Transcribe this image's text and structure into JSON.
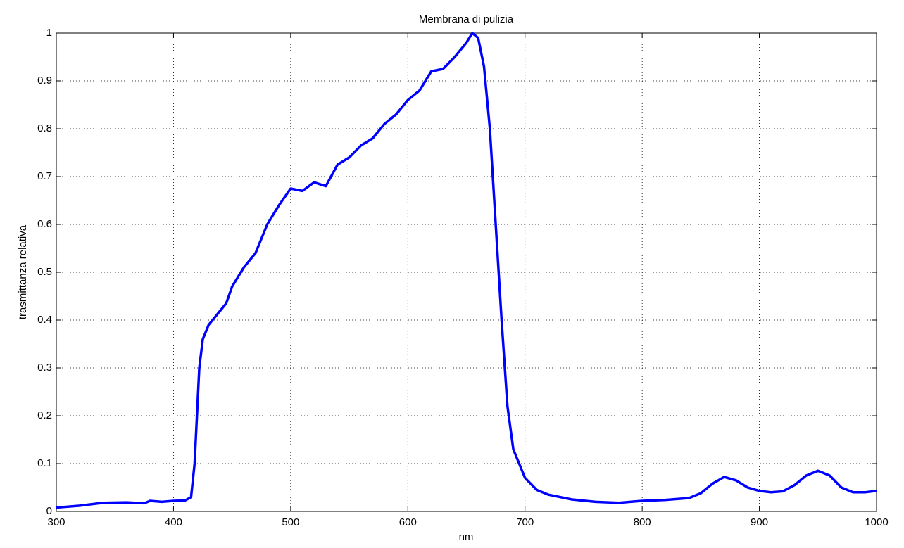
{
  "chart_data": {
    "type": "line",
    "title": "Membrana di pulizia",
    "x_label": "nm",
    "y_label": "trasmittanza relativa",
    "x": [
      300,
      320,
      340,
      360,
      375,
      380,
      390,
      400,
      410,
      415,
      418,
      420,
      422,
      425,
      430,
      440,
      445,
      450,
      460,
      470,
      475,
      480,
      490,
      500,
      510,
      520,
      530,
      540,
      550,
      560,
      570,
      580,
      590,
      600,
      610,
      620,
      630,
      640,
      650,
      655,
      660,
      665,
      670,
      675,
      680,
      685,
      690,
      700,
      710,
      720,
      740,
      760,
      780,
      800,
      820,
      840,
      850,
      860,
      870,
      880,
      890,
      900,
      910,
      920,
      930,
      940,
      950,
      960,
      970,
      980,
      990,
      1000
    ],
    "series": [
      {
        "color": "#0000ff",
        "values": [
          0.008,
          0.012,
          0.018,
          0.019,
          0.017,
          0.022,
          0.02,
          0.022,
          0.023,
          0.03,
          0.1,
          0.2,
          0.3,
          0.36,
          0.39,
          0.42,
          0.435,
          0.47,
          0.51,
          0.54,
          0.57,
          0.6,
          0.64,
          0.675,
          0.67,
          0.688,
          0.68,
          0.725,
          0.74,
          0.765,
          0.78,
          0.81,
          0.83,
          0.86,
          0.88,
          0.92,
          0.925,
          0.95,
          0.98,
          1.0,
          0.99,
          0.93,
          0.8,
          0.6,
          0.4,
          0.22,
          0.13,
          0.07,
          0.045,
          0.035,
          0.025,
          0.02,
          0.018,
          0.022,
          0.024,
          0.028,
          0.038,
          0.058,
          0.072,
          0.065,
          0.05,
          0.043,
          0.04,
          0.042,
          0.055,
          0.075,
          0.085,
          0.075,
          0.05,
          0.04,
          0.04,
          0.043
        ]
      }
    ],
    "xlim": [
      300,
      1000
    ],
    "xticks": [
      300,
      400,
      500,
      600,
      700,
      800,
      900,
      1000
    ],
    "ylim": [
      0,
      1
    ],
    "yticks": [
      0,
      0.1,
      0.2,
      0.3,
      0.4,
      0.5,
      0.6,
      0.7,
      0.8,
      0.9,
      1
    ],
    "grid": true
  }
}
